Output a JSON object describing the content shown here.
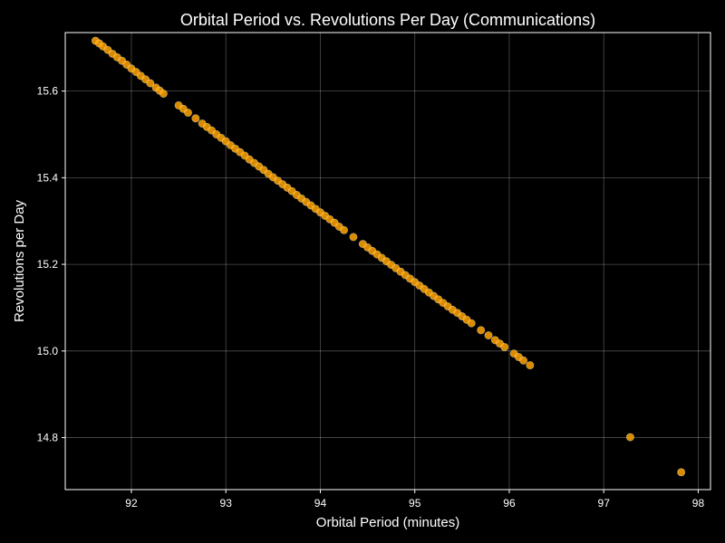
{
  "chart_data": {
    "type": "scatter",
    "title": "Orbital Period vs. Revolutions Per Day (Communications)",
    "xlabel": "Orbital Period (minutes)",
    "ylabel": "Revolutions per Day",
    "xlim": [
      91.3,
      98.13
    ],
    "ylim": [
      14.68,
      15.735
    ],
    "xticks": [
      "92",
      "93",
      "94",
      "95",
      "96",
      "97",
      "98"
    ],
    "yticks": [
      "14.8",
      "15.0",
      "15.2",
      "15.4",
      "15.6"
    ],
    "grid": true,
    "marker_color": "#FFA500",
    "background": "#000000",
    "points": [
      [
        91.62,
        15.716
      ],
      [
        91.66,
        15.71
      ],
      [
        91.7,
        15.703
      ],
      [
        91.75,
        15.695
      ],
      [
        91.8,
        15.686
      ],
      [
        91.85,
        15.678
      ],
      [
        91.9,
        15.67
      ],
      [
        91.95,
        15.661
      ],
      [
        92.0,
        15.652
      ],
      [
        92.05,
        15.644
      ],
      [
        92.1,
        15.635
      ],
      [
        92.15,
        15.627
      ],
      [
        92.2,
        15.618
      ],
      [
        92.26,
        15.608
      ],
      [
        92.3,
        15.601
      ],
      [
        92.34,
        15.594
      ],
      [
        92.5,
        15.567
      ],
      [
        92.55,
        15.559
      ],
      [
        92.6,
        15.55
      ],
      [
        92.68,
        15.537
      ],
      [
        92.75,
        15.525
      ],
      [
        92.8,
        15.517
      ],
      [
        92.85,
        15.509
      ],
      [
        92.9,
        15.5
      ],
      [
        92.95,
        15.492
      ],
      [
        93.0,
        15.484
      ],
      [
        93.05,
        15.475
      ],
      [
        93.1,
        15.467
      ],
      [
        93.15,
        15.459
      ],
      [
        93.2,
        15.451
      ],
      [
        93.25,
        15.442
      ],
      [
        93.3,
        15.434
      ],
      [
        93.35,
        15.426
      ],
      [
        93.4,
        15.418
      ],
      [
        93.45,
        15.409
      ],
      [
        93.5,
        15.401
      ],
      [
        93.55,
        15.393
      ],
      [
        93.6,
        15.385
      ],
      [
        93.65,
        15.377
      ],
      [
        93.7,
        15.369
      ],
      [
        93.75,
        15.36
      ],
      [
        93.8,
        15.352
      ],
      [
        93.85,
        15.344
      ],
      [
        93.9,
        15.336
      ],
      [
        93.95,
        15.328
      ],
      [
        94.0,
        15.32
      ],
      [
        94.05,
        15.312
      ],
      [
        94.1,
        15.304
      ],
      [
        94.15,
        15.296
      ],
      [
        94.2,
        15.287
      ],
      [
        94.25,
        15.279
      ],
      [
        94.35,
        15.263
      ],
      [
        94.45,
        15.247
      ],
      [
        94.5,
        15.239
      ],
      [
        94.55,
        15.231
      ],
      [
        94.6,
        15.223
      ],
      [
        94.65,
        15.215
      ],
      [
        94.7,
        15.207
      ],
      [
        94.75,
        15.199
      ],
      [
        94.8,
        15.191
      ],
      [
        94.85,
        15.183
      ],
      [
        94.9,
        15.175
      ],
      [
        94.95,
        15.167
      ],
      [
        95.0,
        15.159
      ],
      [
        95.05,
        15.151
      ],
      [
        95.1,
        15.143
      ],
      [
        95.15,
        15.135
      ],
      [
        95.2,
        15.127
      ],
      [
        95.25,
        15.119
      ],
      [
        95.3,
        15.111
      ],
      [
        95.35,
        15.103
      ],
      [
        95.4,
        15.095
      ],
      [
        95.45,
        15.088
      ],
      [
        95.5,
        15.08
      ],
      [
        95.55,
        15.072
      ],
      [
        95.6,
        15.064
      ],
      [
        95.7,
        15.048
      ],
      [
        95.78,
        15.036
      ],
      [
        95.85,
        15.025
      ],
      [
        95.9,
        15.017
      ],
      [
        95.95,
        15.009
      ],
      [
        96.05,
        14.994
      ],
      [
        96.1,
        14.986
      ],
      [
        96.15,
        14.978
      ],
      [
        96.22,
        14.967
      ],
      [
        97.28,
        14.801
      ],
      [
        97.82,
        14.72
      ]
    ]
  }
}
